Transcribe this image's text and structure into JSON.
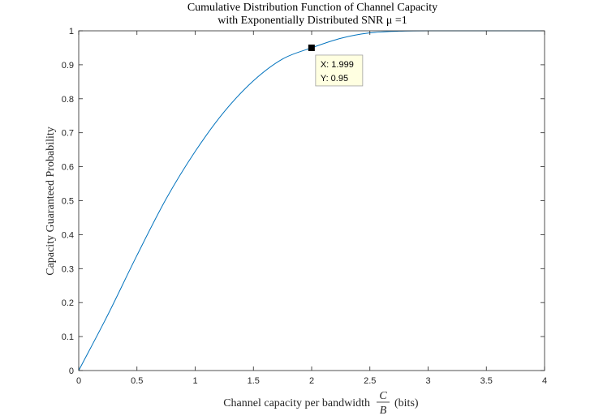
{
  "chart_data": {
    "type": "line",
    "title": {
      "line1": "Cumulative Distribution Function of Channel Capacity",
      "line2": "with Exponentially Distributed SNR μ =1"
    },
    "xlabel": {
      "text": "Channel capacity per bandwidth",
      "fraction_numerator": "C",
      "fraction_denominator": "B",
      "suffix": "(bits)"
    },
    "ylabel": "Capacity Guaranteed Probability",
    "xlim": [
      0,
      4
    ],
    "ylim": [
      0,
      1
    ],
    "xticks": [
      0,
      0.5,
      1,
      1.5,
      2,
      2.5,
      3,
      3.5,
      4
    ],
    "xtick_labels": [
      "0",
      "0.5",
      "1",
      "1.5",
      "2",
      "2.5",
      "3",
      "3.5",
      "4"
    ],
    "yticks": [
      0,
      0.1,
      0.2,
      0.3,
      0.4,
      0.5,
      0.6,
      0.7,
      0.8,
      0.9,
      1
    ],
    "ytick_labels": [
      "0",
      "0.1",
      "0.2",
      "0.3",
      "0.4",
      "0.5",
      "0.6",
      "0.7",
      "0.8",
      "0.9",
      "1"
    ],
    "grid": false,
    "line_color": "#0072BD",
    "series": [
      {
        "x": [
          0,
          0.25,
          0.5,
          0.75,
          1.0,
          1.25,
          1.5,
          1.75,
          2.0,
          2.25,
          2.5,
          2.75,
          3.0,
          3.25,
          3.5,
          3.75,
          4.0
        ],
        "values": [
          0,
          0.164,
          0.339,
          0.505,
          0.645,
          0.762,
          0.853,
          0.917,
          0.95,
          0.978,
          0.994,
          0.999,
          1.0,
          1.0,
          1.0,
          1.0,
          1.0
        ]
      }
    ],
    "datatip": {
      "x": 1.999,
      "y": 0.95,
      "x_label": "X: 1.999",
      "y_label": "Y: 0.95"
    }
  }
}
